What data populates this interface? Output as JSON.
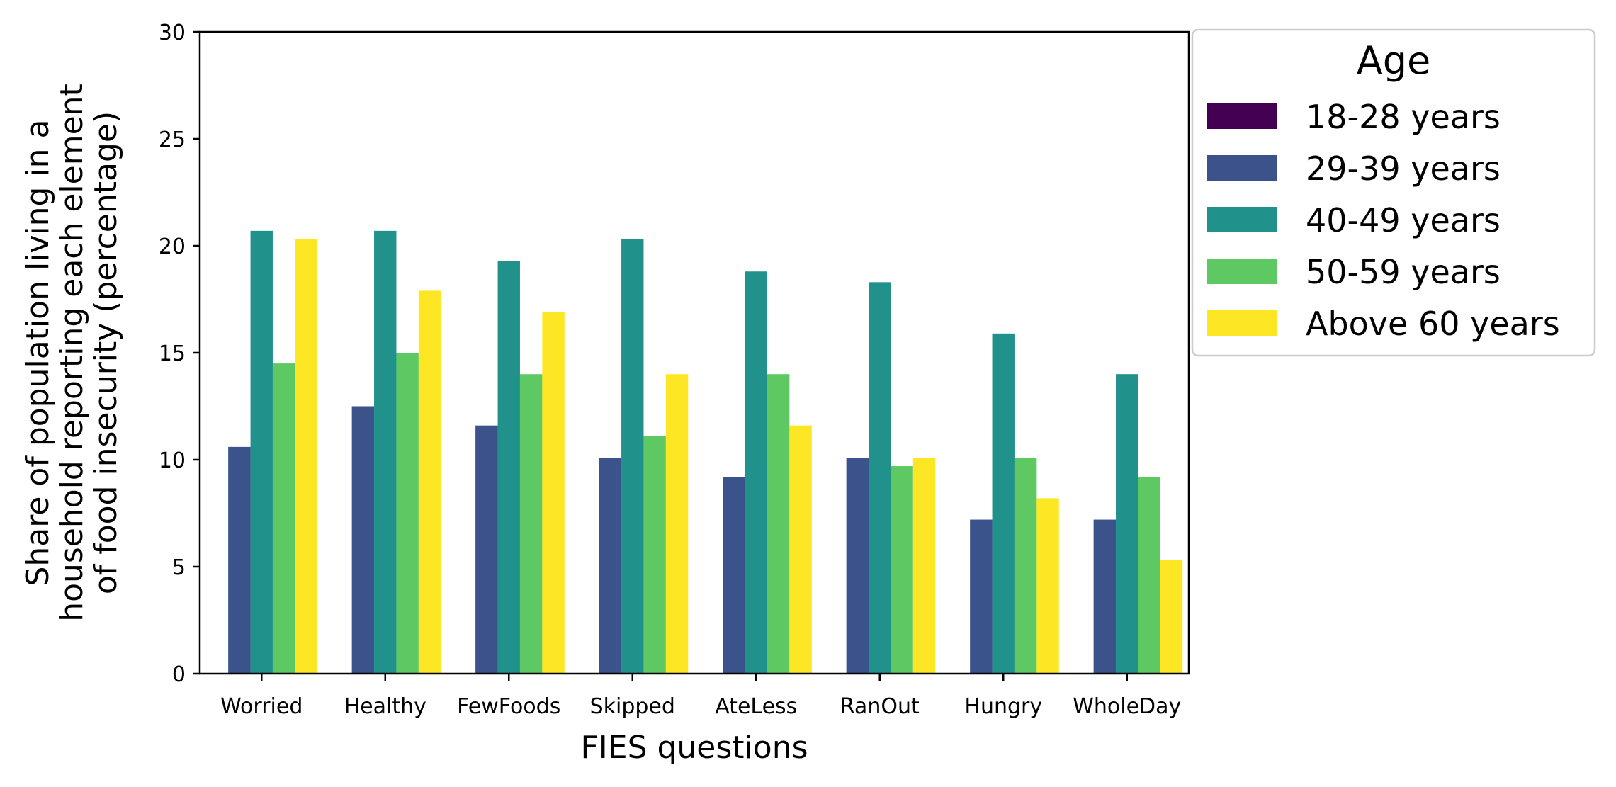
{
  "chart_data": {
    "type": "bar",
    "title": "",
    "xlabel": "FIES questions",
    "ylabel_lines": [
      "Share of population living in a",
      "household reporting each element",
      "of food insecurity (percentage)"
    ],
    "ylim": [
      0,
      30
    ],
    "yticks": [
      0,
      5,
      10,
      15,
      20,
      25,
      30
    ],
    "grid": false,
    "legend_position": "outside-right",
    "legend_title": "Age",
    "categories": [
      "Worried",
      "Healthy",
      "FewFoods",
      "Skipped",
      "AteLess",
      "RanOut",
      "Hungry",
      "WholeDay"
    ],
    "series": [
      {
        "name": "18-28 years",
        "color": "#440154",
        "values": [
          0,
          0,
          0,
          0,
          0,
          0,
          0,
          0
        ]
      },
      {
        "name": "29-39 years",
        "color": "#3b528b",
        "values": [
          10.6,
          12.5,
          11.6,
          10.1,
          9.2,
          10.1,
          7.2,
          7.2
        ]
      },
      {
        "name": "40-49 years",
        "color": "#21918c",
        "values": [
          20.7,
          20.7,
          19.3,
          20.3,
          18.8,
          18.3,
          15.9,
          14.0
        ]
      },
      {
        "name": "50-59 years",
        "color": "#5ec962",
        "values": [
          14.5,
          15.0,
          14.0,
          11.1,
          14.0,
          9.7,
          10.1,
          9.2
        ]
      },
      {
        "name": "Above 60 years",
        "color": "#fde725",
        "values": [
          20.3,
          17.9,
          16.9,
          14.0,
          11.6,
          10.1,
          8.2,
          5.3
        ]
      }
    ]
  }
}
